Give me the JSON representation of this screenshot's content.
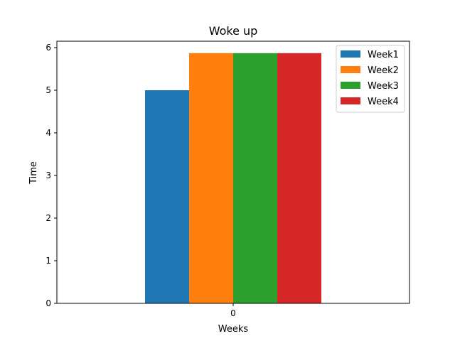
{
  "chart_data": {
    "type": "bar",
    "title": "Woke up",
    "xlabel": "Weeks",
    "ylabel": "Time",
    "categories": [
      "0"
    ],
    "series": [
      {
        "name": "Week1",
        "values": [
          5.0
        ],
        "color": "#1f77b4"
      },
      {
        "name": "Week2",
        "values": [
          5.87
        ],
        "color": "#ff7f0e"
      },
      {
        "name": "Week3",
        "values": [
          5.87
        ],
        "color": "#2ca02c"
      },
      {
        "name": "Week4",
        "values": [
          5.87
        ],
        "color": "#d62728"
      }
    ],
    "ylim": [
      0,
      6.15
    ],
    "yticks": [
      0,
      1,
      2,
      3,
      4,
      5,
      6
    ],
    "xlim": [
      -0.4,
      0.4
    ],
    "bar_width": 0.1,
    "legend": "top-right",
    "grid": false
  }
}
